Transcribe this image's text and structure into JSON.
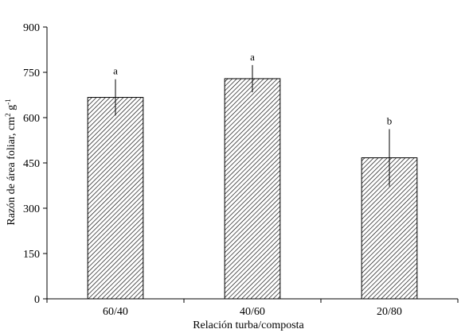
{
  "chart_data": {
    "type": "bar",
    "title": "",
    "xlabel": "Relación turba/composta",
    "ylabel": {
      "main": "Razón de área foliar, cm",
      "sup1": "2",
      "mid": " g",
      "sup2": "-1"
    },
    "categories": [
      "60/40",
      "40/60",
      "20/80"
    ],
    "values": [
      667,
      729,
      467
    ],
    "error_plus": [
      60,
      45,
      95
    ],
    "error_minus": [
      60,
      45,
      95
    ],
    "significance": [
      "a",
      "a",
      "b"
    ],
    "ylim": [
      0,
      900
    ],
    "yticks": [
      0,
      150,
      300,
      450,
      600,
      750,
      900
    ],
    "grid": false,
    "legend": "none",
    "bar_fill": "diagonal-hatch",
    "colors": {
      "bar_stroke": "#000000",
      "hatch": "#000000",
      "background": "#ffffff"
    }
  }
}
